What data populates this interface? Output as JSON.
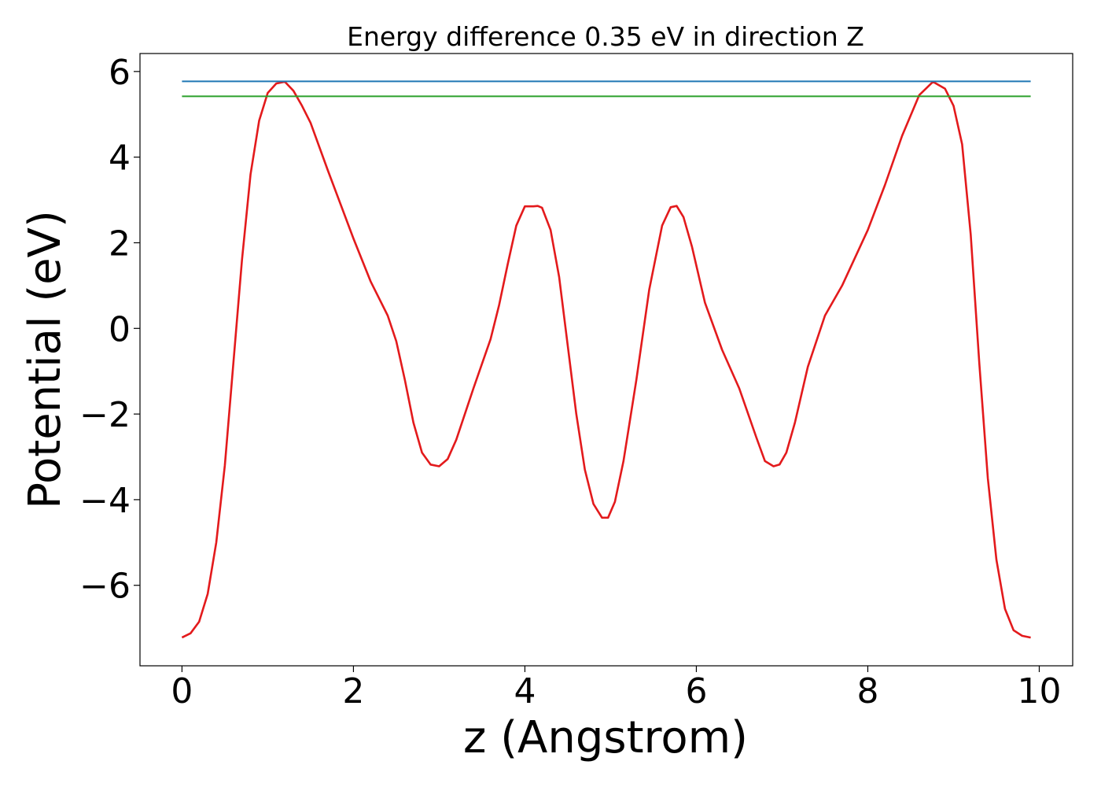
{
  "chart_data": {
    "type": "line",
    "title": "Energy difference 0.35 eV in direction Z",
    "xlabel": "z (Angstrom)",
    "ylabel": "Potential (eV)",
    "xlim": [
      -0.49,
      10.39
    ],
    "ylim": [
      -7.88,
      6.42
    ],
    "xticks": [
      0,
      2,
      4,
      6,
      8,
      10
    ],
    "xtick_labels": [
      "0",
      "2",
      "4",
      "6",
      "8",
      "10"
    ],
    "yticks": [
      -6,
      -4,
      -2,
      0,
      2,
      4,
      6
    ],
    "ytick_labels": [
      "−6",
      "−4",
      "−2",
      "0",
      "2",
      "4",
      "6"
    ],
    "grid": false,
    "legend": "none",
    "series": [
      {
        "color": "#e31a1c",
        "x": [
          0.0,
          0.1,
          0.2,
          0.3,
          0.4,
          0.5,
          0.6,
          0.7,
          0.8,
          0.9,
          1.0,
          1.1,
          1.2,
          1.3,
          1.4,
          1.5,
          1.7,
          2.0,
          2.2,
          2.4,
          2.5,
          2.6,
          2.7,
          2.8,
          2.9,
          3.0,
          3.1,
          3.2,
          3.4,
          3.6,
          3.7,
          3.8,
          3.9,
          4.0,
          4.1,
          4.15,
          4.2,
          4.3,
          4.4,
          4.5,
          4.6,
          4.7,
          4.8,
          4.9,
          4.97,
          5.05,
          5.15,
          5.3,
          5.45,
          5.6,
          5.7,
          5.77,
          5.85,
          5.95,
          6.1,
          6.3,
          6.5,
          6.7,
          6.8,
          6.9,
          6.97,
          7.05,
          7.15,
          7.3,
          7.5,
          7.7,
          8.0,
          8.2,
          8.4,
          8.6,
          8.76,
          8.9,
          9.0,
          9.1,
          9.2,
          9.3,
          9.4,
          9.5,
          9.6,
          9.7,
          9.8,
          9.9
        ],
        "y": [
          -7.22,
          -7.12,
          -6.85,
          -6.2,
          -5.0,
          -3.2,
          -0.8,
          1.6,
          3.6,
          4.85,
          5.5,
          5.72,
          5.76,
          5.55,
          5.2,
          4.8,
          3.7,
          2.1,
          1.1,
          0.3,
          -0.3,
          -1.2,
          -2.2,
          -2.9,
          -3.18,
          -3.22,
          -3.05,
          -2.6,
          -1.4,
          -0.25,
          0.55,
          1.5,
          2.4,
          2.85,
          2.85,
          2.86,
          2.82,
          2.3,
          1.2,
          -0.4,
          -2.0,
          -3.3,
          -4.1,
          -4.42,
          -4.42,
          -4.05,
          -3.1,
          -1.2,
          0.9,
          2.4,
          2.83,
          2.86,
          2.6,
          1.9,
          0.6,
          -0.5,
          -1.4,
          -2.55,
          -3.1,
          -3.22,
          -3.18,
          -2.9,
          -2.2,
          -0.9,
          0.3,
          1.0,
          2.3,
          3.35,
          4.5,
          5.45,
          5.76,
          5.6,
          5.2,
          4.3,
          2.2,
          -0.8,
          -3.5,
          -5.4,
          -6.55,
          -7.05,
          -7.18,
          -7.22
        ]
      },
      {
        "color": "#1f77b4",
        "x": [
          0.0,
          9.9
        ],
        "y": [
          5.77,
          5.77
        ]
      },
      {
        "color": "#2ca02c",
        "x": [
          0.0,
          9.9
        ],
        "y": [
          5.42,
          5.42
        ]
      }
    ]
  }
}
